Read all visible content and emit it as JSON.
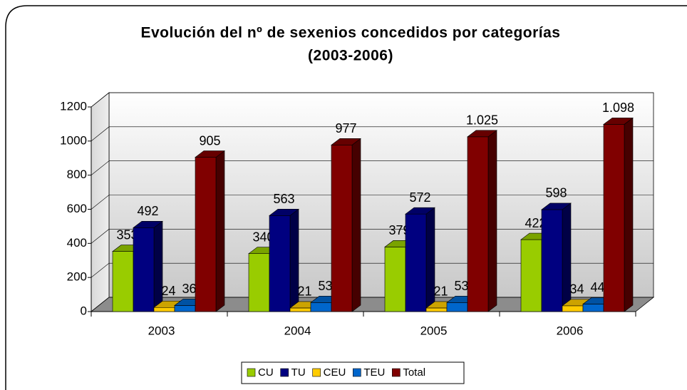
{
  "chart_data": {
    "type": "bar3d",
    "title": [
      "Evolución del nº de sexenios concedidos por categorías",
      "(2003-2006)"
    ],
    "categories": [
      "2003",
      "2004",
      "2005",
      "2006"
    ],
    "series": [
      {
        "name": "CU",
        "color": "#99cc00",
        "values": [
          353,
          340,
          379,
          422
        ]
      },
      {
        "name": "TU",
        "color": "#000080",
        "values": [
          492,
          563,
          572,
          598
        ]
      },
      {
        "name": "CEU",
        "color": "#ffcc00",
        "values": [
          24,
          21,
          21,
          34
        ]
      },
      {
        "name": "TEU",
        "color": "#0066cc",
        "values": [
          36,
          53,
          53,
          44
        ]
      },
      {
        "name": "Total",
        "color": "#800000",
        "values": [
          905,
          977,
          1025,
          1098
        ],
        "value_labels": [
          "905",
          "977",
          "1.025",
          "1.098"
        ]
      }
    ],
    "ylim": [
      0,
      1200
    ],
    "yticks": [
      0,
      200,
      400,
      600,
      800,
      1000,
      1200
    ],
    "grid": true,
    "legend": "bottom"
  }
}
